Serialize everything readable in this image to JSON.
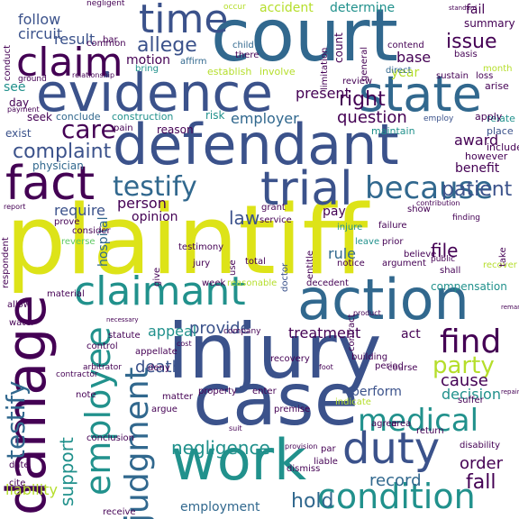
{
  "palette": {
    "dark_purple": "#440154",
    "indigo": "#3b528b",
    "slate": "#31688e",
    "teal": "#21918c",
    "green": "#35b779",
    "light_green": "#5ec962",
    "yellow_green": "#b5de2b",
    "yellow": "#dde318"
  },
  "words": [
    {
      "text": "plaintiff",
      "color": "#dde318"
    },
    {
      "text": "injury",
      "color": "#3b528b"
    },
    {
      "text": "court",
      "color": "#31688e"
    },
    {
      "text": "defendant",
      "color": "#3b528b"
    },
    {
      "text": "evidence",
      "color": "#3b528b"
    },
    {
      "text": "case",
      "color": "#3b528b"
    },
    {
      "text": "damage",
      "color": "#440154"
    },
    {
      "text": "work",
      "color": "#21918c"
    },
    {
      "text": "action",
      "color": "#31688e"
    },
    {
      "text": "state",
      "color": "#31688e"
    },
    {
      "text": "claimant",
      "color": "#21918c"
    },
    {
      "text": "trial",
      "color": "#3b528b"
    },
    {
      "text": "fact",
      "color": "#440154"
    },
    {
      "text": "time",
      "color": "#3b528b"
    },
    {
      "text": "claim",
      "color": "#440154"
    },
    {
      "text": "duty",
      "color": "#3b528b"
    },
    {
      "text": "condition",
      "color": "#21918c"
    },
    {
      "text": "because",
      "color": "#31688e"
    },
    {
      "text": "employee",
      "color": "#21918c"
    },
    {
      "text": "judgment",
      "color": "#31688e"
    },
    {
      "text": "testify",
      "color": "#31688e"
    },
    {
      "text": "medical",
      "color": "#21918c"
    },
    {
      "text": "find",
      "color": "#440154"
    },
    {
      "text": "section",
      "color": "#21918c"
    },
    {
      "text": "party",
      "color": "#b5de2b"
    },
    {
      "text": "care",
      "color": "#440154"
    },
    {
      "text": "fall",
      "color": "#440154"
    },
    {
      "text": "complaint",
      "color": "#3b528b"
    },
    {
      "text": "allege",
      "color": "#3b528b"
    },
    {
      "text": "patient",
      "color": "#3b528b"
    },
    {
      "text": "negligence",
      "color": "#21918c"
    },
    {
      "text": "question",
      "color": "#440154"
    },
    {
      "text": "employer",
      "color": "#31688e"
    },
    {
      "text": "right",
      "color": "#440154"
    },
    {
      "text": "issue",
      "color": "#440154"
    },
    {
      "text": "support",
      "color": "#21918c"
    },
    {
      "text": "hold",
      "color": "#31688e"
    },
    {
      "text": "record",
      "color": "#31688e"
    },
    {
      "text": "order",
      "color": "#440154"
    },
    {
      "text": "death",
      "color": "#3b528b"
    },
    {
      "text": "cause",
      "color": "#440154"
    },
    {
      "text": "provide",
      "color": "#3b528b"
    },
    {
      "text": "decision",
      "color": "#21918c"
    },
    {
      "text": "perform",
      "color": "#3b528b"
    },
    {
      "text": "treatment",
      "color": "#440154"
    },
    {
      "text": "appeal",
      "color": "#21918c"
    },
    {
      "text": "file",
      "color": "#440154"
    },
    {
      "text": "law",
      "color": "#3b528b"
    },
    {
      "text": "person",
      "color": "#440154"
    },
    {
      "text": "opinion",
      "color": "#440154"
    },
    {
      "text": "hospital",
      "color": "#31688e"
    },
    {
      "text": "require",
      "color": "#3b528b"
    },
    {
      "text": "result",
      "color": "#3b528b"
    },
    {
      "text": "circuit",
      "color": "#3b528b"
    },
    {
      "text": "follow",
      "color": "#3b528b"
    },
    {
      "text": "present",
      "color": "#440154"
    },
    {
      "text": "motion",
      "color": "#440154"
    },
    {
      "text": "base",
      "color": "#440154"
    },
    {
      "text": "year",
      "color": "#b5de2b"
    },
    {
      "text": "accident",
      "color": "#b5de2b"
    },
    {
      "text": "determine",
      "color": "#21918c"
    },
    {
      "text": "award",
      "color": "#440154"
    },
    {
      "text": "benefit",
      "color": "#440154"
    },
    {
      "text": "liability",
      "color": "#b5de2b"
    },
    {
      "text": "employment",
      "color": "#31688e"
    },
    {
      "text": "rule",
      "color": "#31688e"
    },
    {
      "text": "pay",
      "color": "#440154"
    },
    {
      "text": "act",
      "color": "#440154"
    },
    {
      "text": "see",
      "color": "#21918c"
    },
    {
      "text": "physician",
      "color": "#31688e"
    },
    {
      "text": "there",
      "color": "#440154"
    },
    {
      "text": "material",
      "color": "#440154"
    },
    {
      "text": "compensation",
      "color": "#21918c"
    },
    {
      "text": "fail",
      "color": "#440154"
    },
    {
      "text": "summary",
      "color": "#440154"
    },
    {
      "text": "day",
      "color": "#440154"
    },
    {
      "text": "risk",
      "color": "#21918c"
    },
    {
      "text": "reason",
      "color": "#440154"
    },
    {
      "text": "construction",
      "color": "#21918c"
    },
    {
      "text": "conclude",
      "color": "#31688e"
    },
    {
      "text": "seek",
      "color": "#440154"
    },
    {
      "text": "exist",
      "color": "#3b528b"
    },
    {
      "text": "review",
      "color": "#440154"
    },
    {
      "text": "maintain",
      "color": "#21918c"
    },
    {
      "text": "however",
      "color": "#440154"
    },
    {
      "text": "include",
      "color": "#440154"
    },
    {
      "text": "place",
      "color": "#3b528b"
    },
    {
      "text": "relate",
      "color": "#21918c"
    },
    {
      "text": "apply",
      "color": "#440154"
    },
    {
      "text": "employ",
      "color": "#3b528b"
    },
    {
      "text": "arise",
      "color": "#440154"
    },
    {
      "text": "month",
      "color": "#b5de2b"
    },
    {
      "text": "sustain",
      "color": "#440154"
    },
    {
      "text": "loss",
      "color": "#440154"
    },
    {
      "text": "direct",
      "color": "#31688e"
    },
    {
      "text": "contend",
      "color": "#440154"
    },
    {
      "text": "basis",
      "color": "#440154"
    },
    {
      "text": "establish",
      "color": "#b5de2b"
    },
    {
      "text": "involve",
      "color": "#b5de2b"
    },
    {
      "text": "limitation",
      "color": "#440154"
    },
    {
      "text": "count",
      "color": "#440154"
    },
    {
      "text": "general",
      "color": "#440154"
    },
    {
      "text": "know",
      "color": "#21918c"
    },
    {
      "text": "occur",
      "color": "#b5de2b"
    },
    {
      "text": "child",
      "color": "#31688e"
    },
    {
      "text": "affirm",
      "color": "#31688e"
    },
    {
      "text": "bring",
      "color": "#21918c"
    },
    {
      "text": "bar",
      "color": "#440154"
    },
    {
      "text": "common",
      "color": "#440154"
    },
    {
      "text": "negligent",
      "color": "#440154"
    },
    {
      "text": "conduct",
      "color": "#440154"
    },
    {
      "text": "ground",
      "color": "#440154"
    },
    {
      "text": "standard",
      "color": "#440154"
    },
    {
      "text": "injure",
      "color": "#21918c"
    },
    {
      "text": "failure",
      "color": "#440154"
    },
    {
      "text": "show",
      "color": "#440154"
    },
    {
      "text": "finding",
      "color": "#440154"
    },
    {
      "text": "take",
      "color": "#440154"
    },
    {
      "text": "leave",
      "color": "#21918c"
    },
    {
      "text": "prior",
      "color": "#440154"
    },
    {
      "text": "believe",
      "color": "#440154"
    },
    {
      "text": "public",
      "color": "#440154"
    },
    {
      "text": "shall",
      "color": "#440154"
    },
    {
      "text": "recover",
      "color": "#b5de2b"
    },
    {
      "text": "notice",
      "color": "#440154"
    },
    {
      "text": "argument",
      "color": "#440154"
    },
    {
      "text": "doctor",
      "color": "#3b528b"
    },
    {
      "text": "entitle",
      "color": "#440154"
    },
    {
      "text": "service",
      "color": "#440154"
    },
    {
      "text": "grant",
      "color": "#440154"
    },
    {
      "text": "use",
      "color": "#440154"
    },
    {
      "text": "total",
      "color": "#440154"
    },
    {
      "text": "jury",
      "color": "#440154"
    },
    {
      "text": "testimony",
      "color": "#440154"
    },
    {
      "text": "prove",
      "color": "#440154"
    },
    {
      "text": "consider",
      "color": "#440154"
    },
    {
      "text": "reverse",
      "color": "#5ec962"
    },
    {
      "text": "respondent",
      "color": "#440154"
    },
    {
      "text": "give",
      "color": "#440154"
    },
    {
      "text": "allow",
      "color": "#440154"
    },
    {
      "text": "material",
      "color": "#440154"
    },
    {
      "text": "week",
      "color": "#440154"
    },
    {
      "text": "reasonable",
      "color": "#b5de2b"
    },
    {
      "text": "decedent",
      "color": "#440154"
    },
    {
      "text": "contract",
      "color": "#440154"
    },
    {
      "text": "water",
      "color": "#440154"
    },
    {
      "text": "statute",
      "color": "#440154"
    },
    {
      "text": "control",
      "color": "#440154"
    },
    {
      "text": "note",
      "color": "#440154"
    },
    {
      "text": "matter",
      "color": "#440154"
    },
    {
      "text": "deny",
      "color": "#440154"
    },
    {
      "text": "argue",
      "color": "#440154"
    },
    {
      "text": "property",
      "color": "#440154"
    },
    {
      "text": "enter",
      "color": "#440154"
    },
    {
      "text": "premise",
      "color": "#440154"
    },
    {
      "text": "indicate",
      "color": "#b5de2b"
    },
    {
      "text": "area",
      "color": "#440154"
    },
    {
      "text": "course",
      "color": "#440154"
    },
    {
      "text": "suffer",
      "color": "#440154"
    },
    {
      "text": "disability",
      "color": "#440154"
    },
    {
      "text": "conclusion",
      "color": "#440154"
    },
    {
      "text": "date",
      "color": "#440154"
    },
    {
      "text": "cite",
      "color": "#440154"
    },
    {
      "text": "dismiss",
      "color": "#440154"
    },
    {
      "text": "liable",
      "color": "#440154"
    },
    {
      "text": "receive",
      "color": "#440154"
    },
    {
      "text": "building",
      "color": "#440154"
    },
    {
      "text": "recovery",
      "color": "#440154"
    },
    {
      "text": "period",
      "color": "#440154"
    },
    {
      "text": "agree",
      "color": "#440154"
    },
    {
      "text": "return",
      "color": "#440154"
    },
    {
      "text": "appellate",
      "color": "#440154"
    },
    {
      "text": "contractor",
      "color": "#440154"
    },
    {
      "text": "arbitrator",
      "color": "#440154"
    },
    {
      "text": "company",
      "color": "#440154"
    },
    {
      "text": "report",
      "color": "#440154"
    },
    {
      "text": "contribution",
      "color": "#440154"
    },
    {
      "text": "par",
      "color": "#440154"
    },
    {
      "text": "pain",
      "color": "#440154"
    },
    {
      "text": "relationship",
      "color": "#440154"
    },
    {
      "text": "payment",
      "color": "#440154"
    },
    {
      "text": "repair",
      "color": "#440154"
    },
    {
      "text": "remand",
      "color": "#440154"
    },
    {
      "text": "suit",
      "color": "#440154"
    },
    {
      "text": "provision",
      "color": "#440154"
    },
    {
      "text": "cost",
      "color": "#440154"
    },
    {
      "text": "product",
      "color": "#440154"
    },
    {
      "text": "necessary",
      "color": "#440154"
    },
    {
      "text": "foot",
      "color": "#440154"
    }
  ]
}
